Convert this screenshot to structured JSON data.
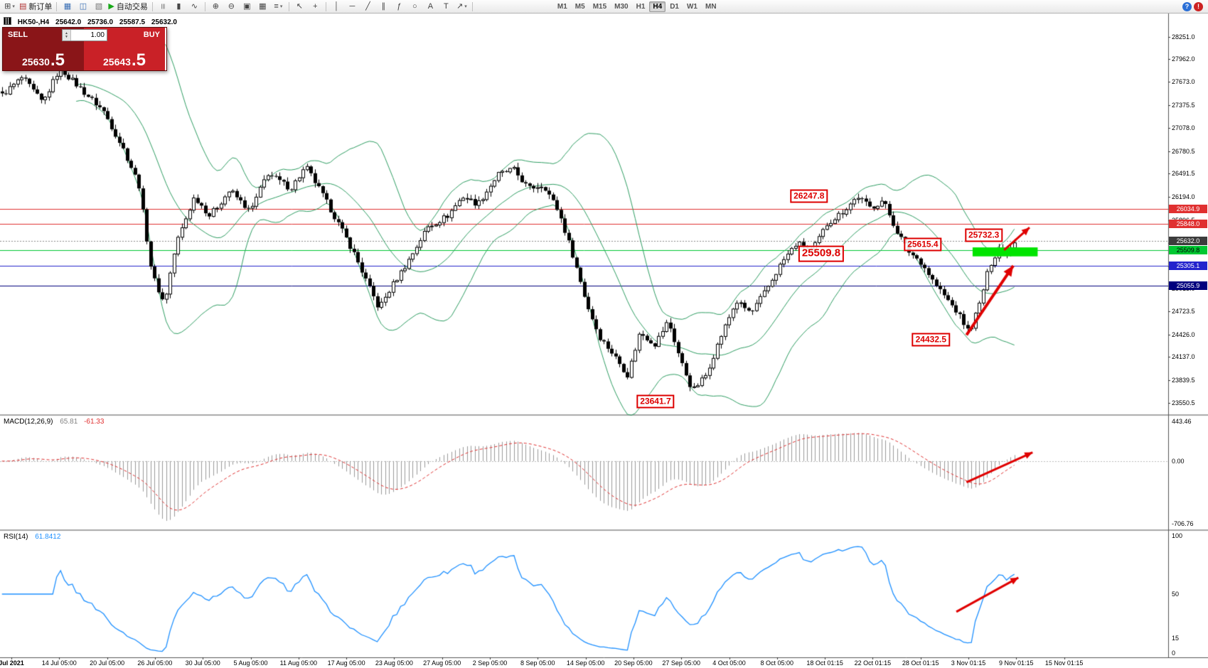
{
  "toolbar": {
    "items": [
      {
        "g": "⊞",
        "n": "new-chart-button",
        "dd": true
      },
      {
        "g": "▤",
        "c": "#b23333",
        "label": "新订单",
        "n": "new-order-button"
      },
      {
        "sep": true
      },
      {
        "g": "▦",
        "c": "#3a6fb5",
        "n": "market-watch-button"
      },
      {
        "g": "◫",
        "c": "#3a6fb5",
        "n": "data-window-button"
      },
      {
        "g": "▧",
        "c": "#777777",
        "n": "navigator-button"
      },
      {
        "g": "▶",
        "c": "#18a818",
        "label": "自动交易",
        "n": "autotrading-button"
      },
      {
        "sep": true
      },
      {
        "g": "|||",
        "n": "bar-chart-button"
      },
      {
        "g": "▮",
        "n": "candlestick-chart-button"
      },
      {
        "g": "∿",
        "n": "line-chart-button"
      },
      {
        "sep": true
      },
      {
        "g": "⊕",
        "n": "zoom-in-button"
      },
      {
        "g": "⊖",
        "n": "zoom-out-button"
      },
      {
        "g": "▣",
        "n": "tile-windows-button"
      },
      {
        "g": "▦",
        "n": "cascade-windows-button"
      },
      {
        "g": "≡",
        "n": "indicators-list-button",
        "dd": true
      },
      {
        "sep": true
      },
      {
        "g": "↖",
        "n": "cursor-tool-button"
      },
      {
        "g": "+",
        "n": "crosshair-tool-button"
      },
      {
        "sep": true
      },
      {
        "g": "│",
        "n": "vertical-line-tool-button"
      },
      {
        "g": "─",
        "n": "horizontal-line-tool-button"
      },
      {
        "g": "╱",
        "n": "trendline-tool-button"
      },
      {
        "g": "∥",
        "n": "channel-tool-button"
      },
      {
        "g": "ƒ",
        "n": "fibonacci-tool-button"
      },
      {
        "g": "○",
        "n": "ellipse-tool-button"
      },
      {
        "g": "A",
        "n": "text-tool-button"
      },
      {
        "g": "T",
        "n": "text-label-tool-button"
      },
      {
        "g": "↗",
        "n": "arrow-objects-button",
        "dd": true
      },
      {
        "sep": true
      }
    ],
    "timeframes": [
      "M1",
      "M5",
      "M15",
      "M30",
      "H1",
      "H4",
      "D1",
      "W1",
      "MN"
    ],
    "active_timeframe": "H4",
    "right_icons": [
      {
        "g": "?",
        "c": "#2a6fd6",
        "n": "help-icon"
      },
      {
        "g": "!",
        "c": "#cc2222",
        "n": "alert-icon"
      }
    ]
  },
  "chart_header": {
    "symbol": "HK50-,H4",
    "open": "25642.0",
    "high": "25736.0",
    "low": "25587.5",
    "close": "25632.0"
  },
  "one_click": {
    "sell_label": "SELL",
    "buy_label": "BUY",
    "volume": "1.00",
    "sell_price": "25630",
    "sell_price_frac": ".5",
    "buy_price": "25643",
    "buy_price_frac": ".5"
  },
  "chart_data": {
    "type": "candlestick",
    "symbol": "HK50",
    "timeframe": "H4",
    "bars": 260,
    "shift_ratio": 0.87,
    "noise_amp": 38,
    "price_axis": {
      "min": 23400,
      "max": 28560,
      "labels": [
        "28251.0",
        "27962.0",
        "27673.0",
        "27375.5",
        "27078.0",
        "26780.5",
        "26491.5",
        "26194.0",
        "25896.5",
        "25599.0",
        "25301.5",
        "25013.0",
        "24723.5",
        "24426.0",
        "24137.0",
        "23839.5",
        "23550.5"
      ]
    },
    "price_path": [
      [
        0,
        27500
      ],
      [
        0.02,
        27730
      ],
      [
        0.04,
        27400
      ],
      [
        0.057,
        27850
      ],
      [
        0.08,
        27550
      ],
      [
        0.1,
        27300
      ],
      [
        0.12,
        26800
      ],
      [
        0.135,
        26350
      ],
      [
        0.148,
        25200
      ],
      [
        0.16,
        24820
      ],
      [
        0.172,
        25600
      ],
      [
        0.19,
        26200
      ],
      [
        0.205,
        25950
      ],
      [
        0.225,
        26280
      ],
      [
        0.245,
        26000
      ],
      [
        0.262,
        26500
      ],
      [
        0.285,
        26300
      ],
      [
        0.3,
        26580
      ],
      [
        0.315,
        26250
      ],
      [
        0.33,
        25900
      ],
      [
        0.347,
        25480
      ],
      [
        0.36,
        25100
      ],
      [
        0.372,
        24760
      ],
      [
        0.385,
        25050
      ],
      [
        0.4,
        25350
      ],
      [
        0.42,
        25800
      ],
      [
        0.44,
        25950
      ],
      [
        0.455,
        26200
      ],
      [
        0.47,
        26100
      ],
      [
        0.49,
        26480
      ],
      [
        0.505,
        26550
      ],
      [
        0.52,
        26300
      ],
      [
        0.535,
        26350
      ],
      [
        0.55,
        26000
      ],
      [
        0.565,
        25400
      ],
      [
        0.578,
        24800
      ],
      [
        0.59,
        24400
      ],
      [
        0.605,
        24150
      ],
      [
        0.618,
        23900
      ],
      [
        0.63,
        24450
      ],
      [
        0.645,
        24300
      ],
      [
        0.658,
        24600
      ],
      [
        0.67,
        24100
      ],
      [
        0.682,
        23700
      ],
      [
        0.695,
        23900
      ],
      [
        0.71,
        24400
      ],
      [
        0.725,
        24850
      ],
      [
        0.74,
        24700
      ],
      [
        0.755,
        25000
      ],
      [
        0.77,
        25350
      ],
      [
        0.785,
        25600
      ],
      [
        0.8,
        25500
      ],
      [
        0.815,
        25850
      ],
      [
        0.83,
        26000
      ],
      [
        0.845,
        26200
      ],
      [
        0.858,
        26050
      ],
      [
        0.87,
        26150
      ],
      [
        0.882,
        25800
      ],
      [
        0.895,
        25500
      ],
      [
        0.908,
        25350
      ],
      [
        0.92,
        25100
      ],
      [
        0.932,
        24900
      ],
      [
        0.944,
        24700
      ],
      [
        0.955,
        24450
      ],
      [
        0.965,
        24800
      ],
      [
        0.975,
        25300
      ],
      [
        0.985,
        25550
      ],
      [
        0.993,
        25480
      ],
      [
        1,
        25630
      ]
    ],
    "hlines": [
      {
        "price": 26034.9,
        "label": "26034.9",
        "color": "#e03030",
        "text": "#ffffff"
      },
      {
        "price": 25848.0,
        "label": "25848.0",
        "color": "#e03030",
        "text": "#ffffff"
      },
      {
        "price": 25509.8,
        "label": "25509.8",
        "color": "#00c832",
        "text": "#000000"
      },
      {
        "price": 25305.1,
        "label": "25305.1",
        "color": "#2323cd",
        "text": "#ffffff"
      },
      {
        "price": 25055.9,
        "label": "25055.9",
        "color": "#00007e",
        "text": "#ffffff"
      }
    ],
    "current_price": {
      "price": 25632.0,
      "label": "25632.0",
      "color": "#3c3c3c",
      "text": "#ffffff"
    },
    "green_zone": {
      "t0": 0.957,
      "t1": 1.021,
      "p0": 25430,
      "p1": 25545,
      "color": "#00e400"
    },
    "callouts": [
      {
        "text": "26247.8",
        "t": 0.796,
        "price": 26200,
        "size": 12
      },
      {
        "text": "25509.8",
        "t": 0.808,
        "price": 25465,
        "size": 15
      },
      {
        "text": "25615.4",
        "t": 0.908,
        "price": 25580,
        "size": 12
      },
      {
        "text": "25732.3",
        "t": 0.968,
        "price": 25705,
        "size": 12
      },
      {
        "text": "24432.5",
        "t": 0.916,
        "price": 24360,
        "size": 12
      },
      {
        "text": "23641.7",
        "t": 0.645,
        "price": 23560,
        "size": 12
      }
    ],
    "arrows": {
      "main": [
        {
          "t0": 0.951,
          "p0": 24420,
          "t1": 0.997,
          "p1": 25310,
          "w": 4
        },
        {
          "t0": 0.988,
          "p0": 25510,
          "t1": 1.013,
          "p1": 25800,
          "w": 3
        }
      ],
      "macd": {
        "t0": 0.951,
        "v0": -230,
        "t1": 1.016,
        "v1": 95,
        "w": 3
      },
      "rsi": {
        "t0": 0.941,
        "v0": 36,
        "t1": 1.002,
        "v1": 63,
        "w": 3
      }
    },
    "indicators": {
      "bollinger": {
        "period": 20,
        "deviation": 2,
        "color": "#2f9e63"
      },
      "macd": {
        "label": "MACD(12,26,9)",
        "value_main": "65.81",
        "value_signal": "-61.33",
        "range": [
          -745,
          495
        ],
        "axis_max": "443.46",
        "axis_zero": "0.00",
        "axis_min": "-706.76",
        "hist_color": "#9a9a9a",
        "signal_color": "#e03030"
      },
      "rsi": {
        "label": "RSI(14)",
        "value": "61.8412",
        "color": "#1e90ff",
        "axis_labels": [
          {
            "v": 100,
            "text": "100"
          },
          {
            "v": 50,
            "text": "50"
          },
          {
            "v": 15,
            "text": "15"
          },
          {
            "v": 0,
            "text": "0"
          }
        ]
      }
    },
    "time_axis": {
      "labels": [
        "Jul 2021",
        "14 Jul 05:00",
        "20 Jul 05:00",
        "26 Jul 05:00",
        "30 Jul 05:00",
        "5 Aug 05:00",
        "11 Aug 05:00",
        "17 Aug 05:00",
        "23 Aug 05:00",
        "27 Aug 05:00",
        "2 Sep 05:00",
        "8 Sep 05:00",
        "14 Sep 05:00",
        "20 Sep 05:00",
        "27 Sep 05:00",
        "4 Oct 05:00",
        "8 Oct 05:00",
        "18 Oct 01:15",
        "22 Oct 01:15",
        "28 Oct 01:15",
        "3 Nov 01:15",
        "9 Nov 01:15",
        "15 Nov 01:15"
      ]
    }
  }
}
